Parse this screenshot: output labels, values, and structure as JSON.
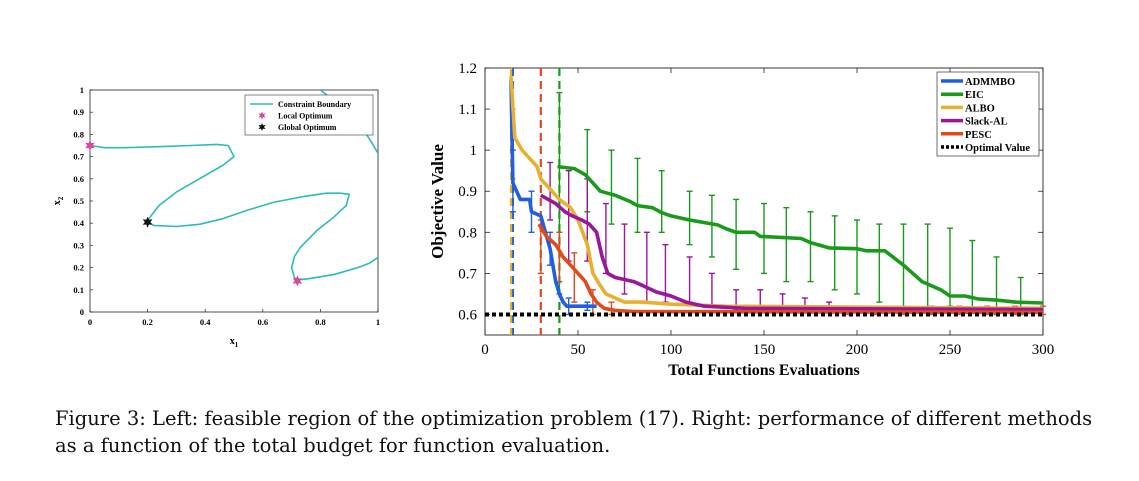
{
  "chart_data": [
    {
      "type": "line",
      "xlabel": "x1",
      "ylabel": "x2",
      "xlim": [
        0,
        1
      ],
      "ylim": [
        0,
        1
      ],
      "x_ticks": [
        "0",
        "0.2",
        "0.4",
        "0.6",
        "0.8",
        "1"
      ],
      "y_ticks": [
        "0",
        "0.1",
        "0.2",
        "0.3",
        "0.4",
        "0.5",
        "0.6",
        "0.7",
        "0.8",
        "0.9",
        "1"
      ],
      "legend_position": "top-right",
      "legend": [
        "Constraint Boundary",
        "Local Optimum",
        "Global Optimum"
      ],
      "colors": {
        "boundary": "#2bbdb4",
        "local": "#e0449b",
        "global": "#111111"
      },
      "series": [
        {
          "name": "Constraint Boundary",
          "kind": "line",
          "segments": [
            [
              [
                0,
                0.75
              ],
              [
                0.05,
                0.74
              ],
              [
                0.12,
                0.74
              ],
              [
                0.25,
                0.745
              ],
              [
                0.35,
                0.75
              ],
              [
                0.44,
                0.755
              ],
              [
                0.48,
                0.75
              ],
              [
                0.5,
                0.7
              ],
              [
                0.46,
                0.66
              ],
              [
                0.38,
                0.6
              ],
              [
                0.3,
                0.54
              ],
              [
                0.24,
                0.48
              ],
              [
                0.21,
                0.43
              ],
              [
                0.2,
                0.41
              ],
              [
                0.22,
                0.39
              ],
              [
                0.3,
                0.385
              ],
              [
                0.38,
                0.395
              ],
              [
                0.46,
                0.42
              ],
              [
                0.55,
                0.46
              ],
              [
                0.64,
                0.495
              ],
              [
                0.74,
                0.52
              ],
              [
                0.82,
                0.535
              ],
              [
                0.87,
                0.535
              ],
              [
                0.9,
                0.53
              ],
              [
                0.89,
                0.48
              ],
              [
                0.84,
                0.42
              ],
              [
                0.79,
                0.37
              ],
              [
                0.76,
                0.33
              ],
              [
                0.73,
                0.29
              ],
              [
                0.71,
                0.25
              ],
              [
                0.7,
                0.2
              ],
              [
                0.71,
                0.155
              ],
              [
                0.72,
                0.145
              ],
              [
                0.76,
                0.15
              ],
              [
                0.85,
                0.17
              ],
              [
                0.93,
                0.2
              ],
              [
                0.97,
                0.22
              ],
              [
                1,
                0.245
              ]
            ],
            [
              [
                0.8,
                1
              ],
              [
                0.85,
                0.95
              ],
              [
                0.91,
                0.88
              ],
              [
                0.95,
                0.82
              ],
              [
                0.98,
                0.76
              ],
              [
                1,
                0.715
              ]
            ]
          ]
        },
        {
          "name": "Local Optimum",
          "kind": "marker",
          "points": [
            [
              0,
              0.75
            ],
            [
              0.72,
              0.14
            ]
          ]
        },
        {
          "name": "Global Optimum",
          "kind": "marker",
          "points": [
            [
              0.2,
              0.405
            ]
          ]
        }
      ]
    },
    {
      "type": "line",
      "xlabel": "Total Functions Evaluations",
      "ylabel": "Objective Value",
      "xlim": [
        0,
        300
      ],
      "ylim": [
        0.55,
        1.2
      ],
      "x_ticks": [
        "0",
        "50",
        "100",
        "150",
        "200",
        "250",
        "300"
      ],
      "y_ticks": [
        "0.6",
        "0.7",
        "0.8",
        "0.9",
        "1",
        "1.1",
        "1.2"
      ],
      "legend_position": "top-right",
      "series": [
        {
          "name": "ADMMBO",
          "color": "#1f5fe0",
          "points": [
            [
              14,
              1.17
            ],
            [
              15,
              0.92
            ],
            [
              17,
              0.9
            ],
            [
              19,
              0.88
            ],
            [
              24,
              0.88
            ],
            [
              25,
              0.85
            ],
            [
              30,
              0.84
            ],
            [
              35,
              0.76
            ],
            [
              38,
              0.68
            ],
            [
              40,
              0.65
            ],
            [
              42,
              0.63
            ],
            [
              44,
              0.62
            ],
            [
              60,
              0.62
            ]
          ],
          "errorbars": [
            [
              15,
              0.85,
              1.0
            ],
            [
              25,
              0.8,
              0.9
            ],
            [
              35,
              0.72,
              0.8
            ],
            [
              45,
              0.6,
              0.64
            ],
            [
              55,
              0.61,
              0.63
            ]
          ],
          "vline": 15
        },
        {
          "name": "EIC",
          "color": "#1a9a1a",
          "points": [
            [
              39,
              0.96
            ],
            [
              48,
              0.955
            ],
            [
              54,
              0.94
            ],
            [
              58,
              0.92
            ],
            [
              62,
              0.9
            ],
            [
              70,
              0.89
            ],
            [
              78,
              0.875
            ],
            [
              82,
              0.865
            ],
            [
              90,
              0.86
            ],
            [
              95,
              0.848
            ],
            [
              100,
              0.84
            ],
            [
              110,
              0.83
            ],
            [
              125,
              0.818
            ],
            [
              130,
              0.808
            ],
            [
              135,
              0.8
            ],
            [
              145,
              0.8
            ],
            [
              148,
              0.79
            ],
            [
              170,
              0.785
            ],
            [
              175,
              0.775
            ],
            [
              185,
              0.762
            ],
            [
              200,
              0.76
            ],
            [
              205,
              0.755
            ],
            [
              215,
              0.755
            ],
            [
              225,
              0.72
            ],
            [
              235,
              0.68
            ],
            [
              245,
              0.66
            ],
            [
              250,
              0.645
            ],
            [
              258,
              0.645
            ],
            [
              265,
              0.638
            ],
            [
              275,
              0.635
            ],
            [
              285,
              0.63
            ],
            [
              300,
              0.628
            ]
          ],
          "errorbars": [
            [
              40,
              0.65,
              1.14
            ],
            [
              55,
              0.85,
              1.05
            ],
            [
              68,
              0.82,
              1.0
            ],
            [
              82,
              0.8,
              0.98
            ],
            [
              95,
              0.8,
              0.95
            ],
            [
              110,
              0.77,
              0.9
            ],
            [
              122,
              0.74,
              0.89
            ],
            [
              135,
              0.71,
              0.88
            ],
            [
              150,
              0.7,
              0.87
            ],
            [
              162,
              0.68,
              0.86
            ],
            [
              175,
              0.68,
              0.85
            ],
            [
              188,
              0.66,
              0.84
            ],
            [
              200,
              0.65,
              0.83
            ],
            [
              212,
              0.63,
              0.82
            ],
            [
              225,
              0.62,
              0.82
            ],
            [
              238,
              0.61,
              0.82
            ],
            [
              250,
              0.62,
              0.81
            ],
            [
              262,
              0.61,
              0.78
            ],
            [
              275,
              0.6,
              0.74
            ],
            [
              288,
              0.6,
              0.69
            ]
          ],
          "vline": 40
        },
        {
          "name": "ALBO",
          "color": "#e8b030",
          "points": [
            [
              14,
              1.18
            ],
            [
              16,
              1.03
            ],
            [
              20,
              1.0
            ],
            [
              24,
              0.98
            ],
            [
              28,
              0.96
            ],
            [
              30,
              0.93
            ],
            [
              36,
              0.9
            ],
            [
              40,
              0.88
            ],
            [
              46,
              0.86
            ],
            [
              50,
              0.83
            ],
            [
              55,
              0.77
            ],
            [
              58,
              0.7
            ],
            [
              62,
              0.67
            ],
            [
              65,
              0.65
            ],
            [
              70,
              0.64
            ],
            [
              75,
              0.63
            ],
            [
              85,
              0.63
            ],
            [
              100,
              0.625
            ],
            [
              130,
              0.62
            ],
            [
              300,
              0.615
            ]
          ],
          "errorbars": [
            [
              15,
              0.93,
              1.1
            ]
          ],
          "vline": 14
        },
        {
          "name": "Slack-AL",
          "color": "#9b169b",
          "points": [
            [
              30,
              0.89
            ],
            [
              38,
              0.87
            ],
            [
              43,
              0.85
            ],
            [
              47,
              0.84
            ],
            [
              52,
              0.83
            ],
            [
              56,
              0.82
            ],
            [
              60,
              0.8
            ],
            [
              63,
              0.74
            ],
            [
              66,
              0.7
            ],
            [
              70,
              0.69
            ],
            [
              75,
              0.685
            ],
            [
              80,
              0.68
            ],
            [
              85,
              0.67
            ],
            [
              92,
              0.655
            ],
            [
              100,
              0.645
            ],
            [
              108,
              0.63
            ],
            [
              118,
              0.62
            ],
            [
              140,
              0.615
            ],
            [
              300,
              0.612
            ]
          ],
          "errorbars": [
            [
              35,
              0.83,
              0.97
            ],
            [
              45,
              0.73,
              0.95
            ],
            [
              55,
              0.73,
              0.93
            ],
            [
              65,
              0.7,
              0.87
            ],
            [
              75,
              0.65,
              0.82
            ],
            [
              87,
              0.63,
              0.8
            ],
            [
              97,
              0.63,
              0.77
            ],
            [
              110,
              0.63,
              0.74
            ],
            [
              122,
              0.62,
              0.7
            ],
            [
              135,
              0.61,
              0.66
            ],
            [
              148,
              0.61,
              0.66
            ],
            [
              160,
              0.61,
              0.65
            ],
            [
              172,
              0.61,
              0.64
            ],
            [
              185,
              0.61,
              0.63
            ]
          ],
          "vline": null
        },
        {
          "name": "PESC",
          "color": "#e04a1c",
          "points": [
            [
              29,
              0.82
            ],
            [
              33,
              0.79
            ],
            [
              38,
              0.77
            ],
            [
              42,
              0.74
            ],
            [
              46,
              0.72
            ],
            [
              50,
              0.7
            ],
            [
              54,
              0.68
            ],
            [
              57,
              0.65
            ],
            [
              60,
              0.63
            ],
            [
              64,
              0.615
            ],
            [
              70,
              0.61
            ],
            [
              80,
              0.607
            ],
            [
              300,
              0.605
            ]
          ],
          "errorbars": [
            [
              30,
              0.7,
              0.83
            ],
            [
              40,
              0.68,
              0.8
            ],
            [
              48,
              0.63,
              0.75
            ],
            [
              58,
              0.6,
              0.66
            ],
            [
              68,
              0.6,
              0.63
            ],
            [
              195,
              0.6,
              0.62
            ],
            [
              210,
              0.6,
              0.62
            ],
            [
              225,
              0.6,
              0.62
            ],
            [
              240,
              0.6,
              0.62
            ],
            [
              255,
              0.6,
              0.62
            ],
            [
              270,
              0.6,
              0.62
            ],
            [
              285,
              0.6,
              0.62
            ],
            [
              300,
              0.6,
              0.62
            ]
          ],
          "vline": 30
        },
        {
          "name": "Optimal Value",
          "color": "#000000",
          "style": "dotted",
          "points": [
            [
              0,
              0.6
            ],
            [
              300,
              0.6
            ]
          ]
        }
      ]
    }
  ],
  "caption": "Figure 3:  Left: feasible region of the optimization problem (17).  Right: performance of different methods as a function of the total budget for function evaluation."
}
